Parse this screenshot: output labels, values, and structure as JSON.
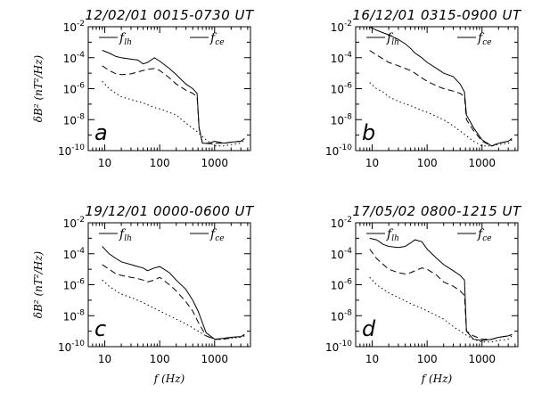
{
  "chart_data": [
    {
      "type": "line",
      "title": "12/02/01   0015-0730  UT",
      "panel_letter": "a",
      "xlabel": "",
      "ylabel": "δB² (nT²/Hz)",
      "xscale": "log",
      "yscale": "log",
      "xlim": [
        5,
        4500
      ],
      "ylim": [
        1e-10,
        0.01
      ],
      "legend": [
        "f_lh",
        "f_ce"
      ],
      "series": [
        {
          "name": "solid",
          "style": "solid",
          "x": [
            9,
            12,
            16,
            20,
            30,
            40,
            50,
            60,
            80,
            100,
            150,
            200,
            300,
            400,
            480,
            520,
            600,
            800,
            1000,
            1500,
            2000,
            3000,
            3500
          ],
          "y": [
            0.0003,
            0.0002,
            0.00012,
            0.0001,
            8e-05,
            7e-05,
            4e-05,
            5e-05,
            0.0001,
            6e-05,
            2e-05,
            8e-06,
            2e-06,
            1e-06,
            5e-07,
            3e-09,
            3e-10,
            3e-10,
            4e-10,
            3e-10,
            3.5e-10,
            4e-10,
            6e-10
          ]
        },
        {
          "name": "dashed",
          "style": "dashed",
          "x": [
            9,
            12,
            16,
            20,
            30,
            40,
            50,
            60,
            80,
            100,
            150,
            200,
            300,
            400,
            480,
            520,
            600,
            800,
            1000,
            1500,
            2000,
            3000,
            3500
          ],
          "y": [
            3e-05,
            1.5e-05,
            9e-06,
            8e-06,
            9e-06,
            1.2e-05,
            1.5e-05,
            1.8e-05,
            2e-05,
            1.5e-05,
            5e-06,
            2e-06,
            8e-07,
            5e-07,
            3e-07,
            3e-09,
            3e-10,
            2.8e-10,
            3e-10,
            3e-10,
            3.5e-10,
            4e-10,
            6e-10
          ]
        },
        {
          "name": "dotted",
          "style": "dotted",
          "x": [
            9,
            12,
            16,
            20,
            30,
            50,
            80,
            100,
            200,
            300,
            500,
            700,
            1000,
            1500,
            2000,
            3000,
            3500
          ],
          "y": [
            3e-06,
            1e-06,
            5e-07,
            3e-07,
            2e-07,
            1.2e-07,
            6e-08,
            5e-08,
            2e-08,
            6e-09,
            1.5e-09,
            5e-10,
            2e-10,
            2e-10,
            2.5e-10,
            3e-10,
            5e-10
          ]
        }
      ]
    },
    {
      "type": "line",
      "title": "16/12/01   0315-0900  UT",
      "panel_letter": "b",
      "xlabel": "",
      "ylabel": "",
      "xscale": "log",
      "yscale": "log",
      "xlim": [
        5,
        4500
      ],
      "ylim": [
        1e-10,
        0.01
      ],
      "legend": [
        "f_lh",
        "f_ce"
      ],
      "series": [
        {
          "name": "solid",
          "style": "solid",
          "x": [
            9,
            12,
            16,
            20,
            30,
            40,
            50,
            60,
            80,
            100,
            150,
            200,
            300,
            400,
            480,
            520,
            700,
            1000,
            1500,
            2000,
            3000,
            3500
          ],
          "y": [
            0.01,
            0.006,
            0.004,
            0.003,
            0.0015,
            0.0008,
            0.0004,
            0.0002,
            0.0001,
            5e-05,
            2e-05,
            1e-05,
            6e-06,
            2e-06,
            6e-07,
            2e-08,
            3e-09,
            5e-10,
            2e-10,
            3e-10,
            4e-10,
            6e-10
          ]
        },
        {
          "name": "dashed",
          "style": "dashed",
          "x": [
            9,
            12,
            16,
            20,
            30,
            40,
            50,
            60,
            80,
            100,
            150,
            200,
            300,
            400,
            480,
            520,
            700,
            1000,
            1500,
            2000,
            3000,
            3500
          ],
          "y": [
            0.0003,
            0.00015,
            8e-05,
            5e-05,
            3e-05,
            2e-05,
            1.5e-05,
            1e-05,
            5e-06,
            3e-06,
            1.5e-06,
            1e-06,
            7e-07,
            5e-07,
            3e-07,
            1e-08,
            2e-09,
            4e-10,
            2e-10,
            3e-10,
            4e-10,
            6e-10
          ]
        },
        {
          "name": "dotted",
          "style": "dotted",
          "x": [
            9,
            12,
            16,
            20,
            30,
            50,
            80,
            100,
            200,
            300,
            500,
            700,
            1000,
            1500,
            2000,
            3000,
            3500
          ],
          "y": [
            2.5e-06,
            1e-06,
            6e-07,
            3e-07,
            1.5e-07,
            8e-08,
            4e-08,
            3e-08,
            1e-08,
            4e-09,
            1e-09,
            4e-10,
            2e-10,
            2e-10,
            2.5e-10,
            3e-10,
            5e-10
          ]
        }
      ]
    },
    {
      "type": "line",
      "title": "19/12/01   0000-0600  UT",
      "panel_letter": "c",
      "xlabel": "f (Hz)",
      "ylabel": "δB² (nT²/Hz)",
      "xscale": "log",
      "yscale": "log",
      "xlim": [
        5,
        4500
      ],
      "ylim": [
        1e-10,
        0.01
      ],
      "legend": [
        "f_lh",
        "f_ce"
      ],
      "series": [
        {
          "name": "solid",
          "style": "solid",
          "x": [
            9,
            12,
            16,
            20,
            30,
            40,
            50,
            60,
            80,
            100,
            150,
            200,
            300,
            400,
            500,
            700,
            1000,
            1500,
            2000,
            3000,
            3500
          ],
          "y": [
            0.0003,
            0.0001,
            5e-05,
            3e-05,
            2e-05,
            1.5e-05,
            1.2e-05,
            8e-06,
            1.2e-05,
            1.5e-05,
            6e-06,
            2e-06,
            5e-07,
            1e-07,
            2e-08,
            8e-10,
            3e-10,
            3.5e-10,
            4e-10,
            4.5e-10,
            6e-10
          ]
        },
        {
          "name": "dashed",
          "style": "dashed",
          "x": [
            9,
            12,
            16,
            20,
            30,
            40,
            50,
            60,
            80,
            100,
            150,
            200,
            300,
            400,
            500,
            700,
            1000,
            1500,
            2000,
            3000,
            3500
          ],
          "y": [
            2e-05,
            1e-05,
            5e-06,
            4e-06,
            3e-06,
            2.5e-06,
            2e-06,
            1.5e-06,
            2e-06,
            3e-06,
            1e-06,
            4e-07,
            8e-08,
            2e-08,
            4e-09,
            5e-10,
            3e-10,
            3e-10,
            4e-10,
            4.5e-10,
            6e-10
          ]
        },
        {
          "name": "dotted",
          "style": "dotted",
          "x": [
            9,
            12,
            16,
            20,
            30,
            50,
            80,
            100,
            200,
            300,
            500,
            700,
            1000,
            1500,
            2000,
            3000,
            3500
          ],
          "y": [
            2e-06,
            8e-07,
            4e-07,
            2.5e-07,
            1.5e-07,
            7e-08,
            3e-08,
            2e-08,
            6e-09,
            3e-09,
            1e-09,
            5e-10,
            3e-10,
            3e-10,
            3.5e-10,
            4e-10,
            5e-10
          ]
        }
      ]
    },
    {
      "type": "line",
      "title": "17/05/02   0800-1215  UT",
      "panel_letter": "d",
      "xlabel": "f (Hz)",
      "ylabel": "",
      "xscale": "log",
      "yscale": "log",
      "xlim": [
        5,
        4500
      ],
      "ylim": [
        1e-10,
        0.01
      ],
      "legend": [
        "f_lh",
        "f_ce"
      ],
      "series": [
        {
          "name": "solid",
          "style": "solid",
          "x": [
            9,
            12,
            16,
            20,
            30,
            40,
            50,
            60,
            80,
            100,
            150,
            200,
            300,
            400,
            480,
            520,
            700,
            1000,
            1500,
            2000,
            3000,
            3500
          ],
          "y": [
            0.001,
            0.0008,
            0.0004,
            0.0003,
            0.00025,
            0.0003,
            0.0005,
            0.0008,
            0.0006,
            0.0002,
            5e-05,
            2e-05,
            8e-06,
            4e-06,
            2e-06,
            1e-09,
            3e-10,
            2.5e-10,
            3e-10,
            4e-10,
            5e-10,
            6e-10
          ]
        },
        {
          "name": "dashed",
          "style": "dashed",
          "x": [
            9,
            12,
            16,
            20,
            30,
            40,
            50,
            60,
            80,
            100,
            150,
            200,
            300,
            400,
            480,
            520,
            700,
            1000,
            1500,
            2000,
            3000,
            3500
          ],
          "y": [
            0.0002,
            5e-05,
            2e-05,
            1e-05,
            6e-06,
            5e-06,
            6e-06,
            8e-06,
            1.2e-05,
            1e-05,
            4e-06,
            1.5e-06,
            8e-07,
            4e-07,
            2e-07,
            1e-09,
            5e-10,
            3e-10,
            3e-10,
            4e-10,
            5e-10,
            6e-10
          ]
        },
        {
          "name": "dotted",
          "style": "dotted",
          "x": [
            9,
            12,
            16,
            20,
            30,
            50,
            80,
            100,
            200,
            300,
            500,
            700,
            1000,
            1500,
            2000,
            3000,
            3500
          ],
          "y": [
            3e-06,
            1e-06,
            5e-07,
            3e-07,
            1.5e-07,
            6e-08,
            3e-08,
            2e-08,
            6e-09,
            2e-09,
            6e-10,
            3e-10,
            2e-10,
            2e-10,
            2.5e-10,
            3e-10,
            5e-10
          ]
        }
      ]
    }
  ],
  "axes": {
    "x_ticks": [
      "10",
      "100",
      "1000"
    ],
    "y_ticks_base": "10",
    "y_ticks_exp": [
      "-10",
      "-8",
      "-6",
      "-4",
      "-2"
    ]
  }
}
